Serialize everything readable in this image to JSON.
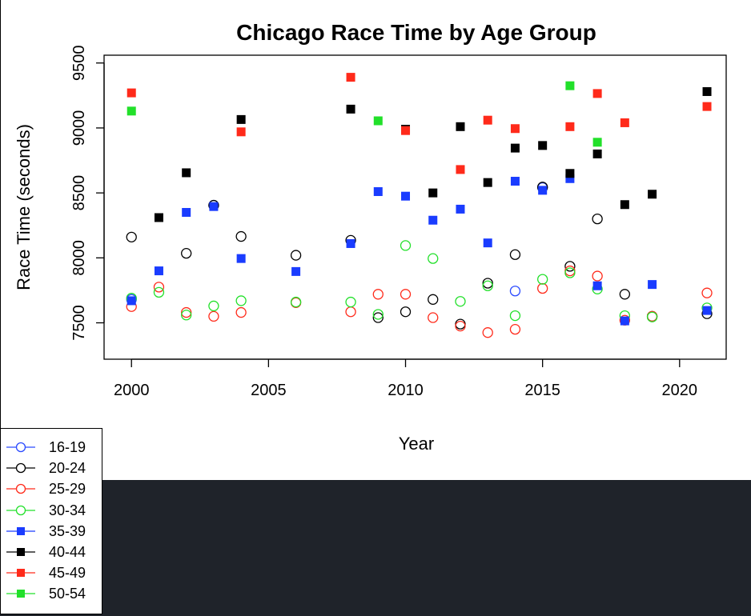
{
  "chart_data": {
    "type": "scatter",
    "title": "Chicago Race Time by Age Group",
    "xlabel": "Year",
    "ylabel": "Race Time (seconds)",
    "xlim": [
      1999,
      2021.7
    ],
    "ylim": [
      7220,
      9560
    ],
    "xticks": [
      2000,
      2005,
      2010,
      2015,
      2020
    ],
    "yticks": [
      7500,
      8000,
      8500,
      9000,
      9500
    ],
    "grid": false,
    "legend_position": "bottom-left",
    "series": [
      {
        "name": "16-19",
        "color": "#2b4bff",
        "marker": "open-circle",
        "points": [
          [
            2000,
            7680
          ],
          [
            2003,
            8405
          ],
          [
            2014,
            7745
          ],
          [
            2015,
            8540
          ]
        ]
      },
      {
        "name": "20-24",
        "color": "#000000",
        "marker": "open-circle",
        "points": [
          [
            2000,
            8160
          ],
          [
            2002,
            8035
          ],
          [
            2003,
            8405
          ],
          [
            2004,
            8165
          ],
          [
            2006,
            8020
          ],
          [
            2008,
            8135
          ],
          [
            2009,
            7540
          ],
          [
            2010,
            7585
          ],
          [
            2011,
            7680
          ],
          [
            2012,
            7490
          ],
          [
            2013,
            7805
          ],
          [
            2014,
            8025
          ],
          [
            2015,
            8545
          ],
          [
            2016,
            7935
          ],
          [
            2017,
            8300
          ],
          [
            2018,
            7720
          ],
          [
            2019,
            7550
          ],
          [
            2021,
            7570
          ]
        ]
      },
      {
        "name": "25-29",
        "color": "#ff2a1a",
        "marker": "open-circle",
        "points": [
          [
            2000,
            7625
          ],
          [
            2001,
            7775
          ],
          [
            2002,
            7580
          ],
          [
            2003,
            7550
          ],
          [
            2004,
            7580
          ],
          [
            2006,
            7655
          ],
          [
            2008,
            7585
          ],
          [
            2009,
            7720
          ],
          [
            2010,
            7720
          ],
          [
            2011,
            7540
          ],
          [
            2012,
            7475
          ],
          [
            2013,
            7425
          ],
          [
            2014,
            7450
          ],
          [
            2015,
            7765
          ],
          [
            2016,
            7900
          ],
          [
            2017,
            7860
          ],
          [
            2018,
            7520
          ],
          [
            2019,
            7550
          ],
          [
            2021,
            7730
          ]
        ]
      },
      {
        "name": "30-34",
        "color": "#22e02a",
        "marker": "open-circle",
        "points": [
          [
            2000,
            7690
          ],
          [
            2001,
            7735
          ],
          [
            2002,
            7560
          ],
          [
            2003,
            7630
          ],
          [
            2004,
            7670
          ],
          [
            2006,
            7660
          ],
          [
            2008,
            7660
          ],
          [
            2009,
            7565
          ],
          [
            2010,
            8095
          ],
          [
            2011,
            7995
          ],
          [
            2012,
            7665
          ],
          [
            2013,
            7785
          ],
          [
            2014,
            7555
          ],
          [
            2015,
            7835
          ],
          [
            2016,
            7885
          ],
          [
            2017,
            7760
          ],
          [
            2018,
            7555
          ],
          [
            2019,
            7545
          ],
          [
            2021,
            7615
          ]
        ]
      },
      {
        "name": "35-39",
        "color": "#1a3cff",
        "marker": "filled-square",
        "points": [
          [
            2000,
            7670
          ],
          [
            2001,
            7900
          ],
          [
            2002,
            8350
          ],
          [
            2003,
            8395
          ],
          [
            2004,
            7995
          ],
          [
            2006,
            7895
          ],
          [
            2008,
            8110
          ],
          [
            2009,
            8510
          ],
          [
            2010,
            8475
          ],
          [
            2011,
            8290
          ],
          [
            2012,
            8375
          ],
          [
            2013,
            8115
          ],
          [
            2014,
            8590
          ],
          [
            2015,
            8520
          ],
          [
            2016,
            8610
          ],
          [
            2017,
            7785
          ],
          [
            2018,
            7515
          ],
          [
            2019,
            7795
          ],
          [
            2021,
            7595
          ]
        ]
      },
      {
        "name": "40-44",
        "color": "#000000",
        "marker": "filled-square",
        "points": [
          [
            2001,
            8310
          ],
          [
            2002,
            8655
          ],
          [
            2004,
            9065
          ],
          [
            2008,
            9145
          ],
          [
            2010,
            8990
          ],
          [
            2011,
            8500
          ],
          [
            2012,
            9010
          ],
          [
            2013,
            8580
          ],
          [
            2014,
            8845
          ],
          [
            2015,
            8865
          ],
          [
            2016,
            8650
          ],
          [
            2017,
            8800
          ],
          [
            2018,
            8410
          ],
          [
            2019,
            8490
          ],
          [
            2021,
            9280
          ]
        ]
      },
      {
        "name": "45-49",
        "color": "#ff2a1a",
        "marker": "filled-square",
        "points": [
          [
            2000,
            9270
          ],
          [
            2004,
            8970
          ],
          [
            2008,
            9390
          ],
          [
            2010,
            8980
          ],
          [
            2012,
            8680
          ],
          [
            2013,
            9060
          ],
          [
            2014,
            8995
          ],
          [
            2016,
            9010
          ],
          [
            2017,
            9265
          ],
          [
            2018,
            9040
          ],
          [
            2021,
            9165
          ]
        ]
      },
      {
        "name": "50-54",
        "color": "#22e02a",
        "marker": "filled-square",
        "points": [
          [
            2000,
            9130
          ],
          [
            2009,
            9055
          ],
          [
            2016,
            9325
          ],
          [
            2017,
            8890
          ]
        ]
      }
    ]
  }
}
